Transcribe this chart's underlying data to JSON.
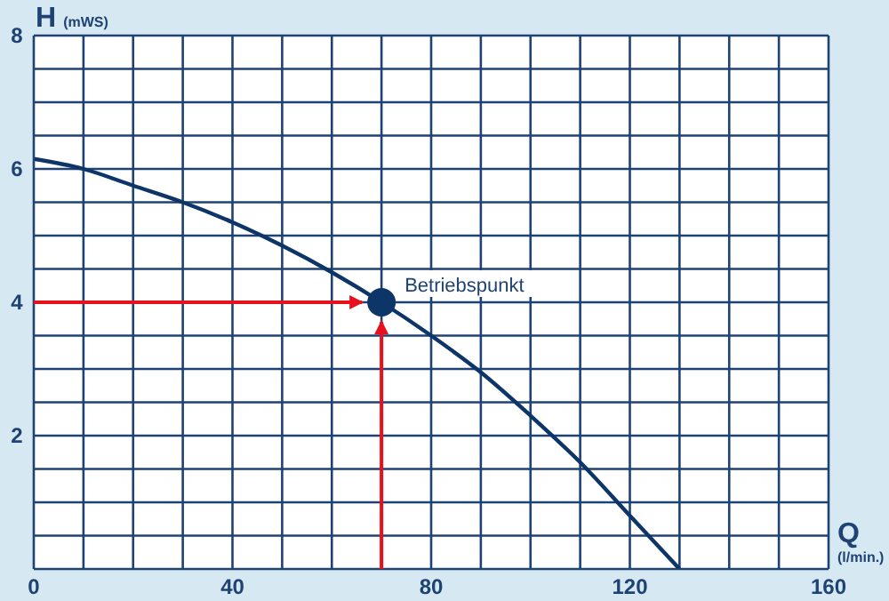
{
  "chart_data": {
    "type": "line",
    "xlabel": "Q$_{(l/min.)}$",
    "ylabel": "H (mWS)",
    "series": [
      {
        "color": "#0d3568",
        "x": [
          0,
          10,
          20,
          30,
          40,
          50,
          60,
          70,
          80,
          90,
          100,
          110,
          120,
          130
        ],
        "values": [
          6.15,
          6.0,
          5.75,
          5.5,
          5.2,
          4.85,
          4.45,
          4.0,
          3.5,
          2.95,
          2.3,
          1.6,
          0.8,
          0
        ]
      },
      {
        "type": "scatter",
        "color": "#0d3568",
        "marker": "circle",
        "x": [
          70
        ],
        "values": [
          4
        ]
      }
    ],
    "annotations": [
      {
        "text": "Betriebspunkt",
        "x": 70,
        "y": 4
      }
    ],
    "xlim": [
      0,
      160
    ],
    "xticks": [
      0,
      {
        "value": 10,
        "label": null
      },
      {
        "value": 20,
        "label": null
      },
      {
        "value": 30,
        "label": null
      },
      40,
      {
        "value": 50,
        "label": null
      },
      {
        "value": 60,
        "label": null
      },
      {
        "value": 70,
        "label": null
      },
      80,
      {
        "value": 90,
        "label": null
      },
      {
        "value": 100,
        "label": null
      },
      {
        "value": 110,
        "label": null
      },
      120,
      {
        "value": 130,
        "label": null
      },
      {
        "value": 140,
        "label": null
      },
      {
        "value": 150,
        "label": null
      },
      160
    ],
    "ylim": [
      0,
      8
    ],
    "yticks": [
      {
        "value": 0,
        "label": null
      },
      {
        "value": 0.5,
        "label": null
      },
      {
        "value": 1,
        "label": null
      },
      {
        "value": 1.5,
        "label": null
      },
      2,
      {
        "value": 2.5,
        "label": null
      },
      {
        "value": 3,
        "label": null
      },
      {
        "value": 3.5,
        "label": null
      },
      4,
      {
        "value": 4.5,
        "label": null
      },
      {
        "value": 5,
        "label": null
      },
      {
        "value": 5.5,
        "label": null
      },
      6,
      {
        "value": 6.5,
        "label": null
      },
      {
        "value": 7,
        "label": null
      },
      {
        "value": 7.5,
        "label": null
      },
      8
    ],
    "grid": true,
    "marker": "none",
    "line_style": "solid",
    "legend": false
  }
}
